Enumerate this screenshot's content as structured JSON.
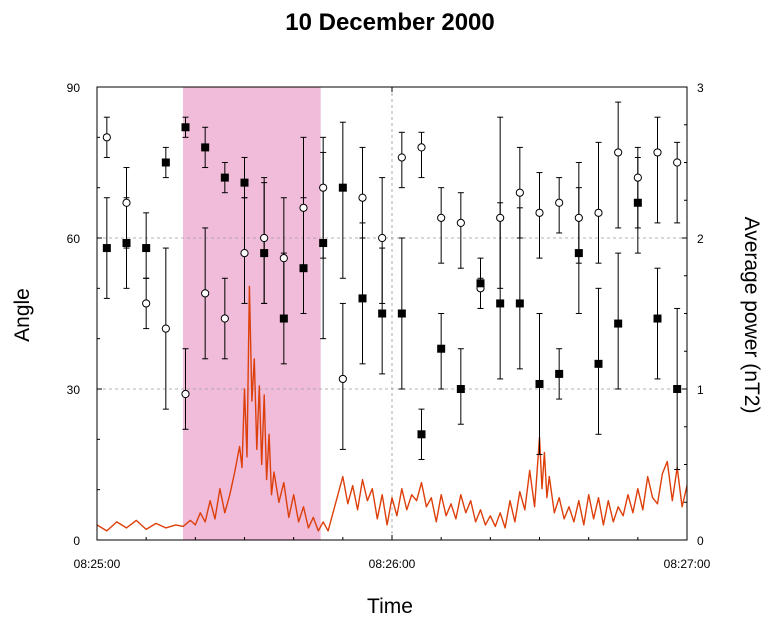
{
  "chart_data": {
    "type": "scatter",
    "title": "10 December 2000",
    "xlabel": "Time",
    "ylabel_left": "Angle",
    "ylabel_right": "Average power (nT2)",
    "x_ticks": [
      "08:25:00",
      "08:26:00",
      "08:27:00"
    ],
    "x_range_seconds": [
      0,
      120
    ],
    "y_left_ticks": [
      "0",
      "30",
      "60",
      "90"
    ],
    "y_left_range": [
      0,
      90
    ],
    "y_right_ticks": [
      "0",
      "1",
      "2",
      "3"
    ],
    "y_right_range": [
      0,
      3
    ],
    "grid": "dashed at 08:26:00, 30 and 60",
    "shaded_interval_seconds": [
      17.5,
      45.5
    ],
    "shaded_color": "#f0bcd9",
    "series": [
      {
        "marker": "open-circle",
        "x_seconds": [
          2,
          6,
          10,
          14,
          18,
          22,
          26,
          30,
          34,
          38,
          42,
          46,
          50,
          54,
          58,
          62,
          66,
          70,
          74,
          78,
          82,
          86,
          90,
          94,
          98,
          102,
          106,
          110,
          114,
          118
        ],
        "values": [
          80,
          67,
          47,
          42,
          29,
          49,
          44,
          57,
          60,
          56,
          66,
          70,
          32,
          68,
          60,
          76,
          78,
          64,
          63,
          50,
          64,
          69,
          65,
          67,
          64,
          65,
          77,
          72,
          77,
          75
        ],
        "err_low": [
          76,
          58,
          42,
          26,
          22,
          36,
          36,
          47,
          47,
          44,
          54,
          56,
          18,
          60,
          47,
          70,
          72,
          55,
          54,
          46,
          50,
          60,
          56,
          61,
          55,
          55,
          62,
          62,
          63,
          63
        ],
        "err_high": [
          84,
          74,
          52,
          58,
          38,
          62,
          52,
          68,
          72,
          68,
          80,
          80,
          47,
          78,
          72,
          81,
          81,
          70,
          69,
          52,
          84,
          78,
          73,
          72,
          75,
          79,
          87,
          76,
          84,
          79
        ]
      },
      {
        "marker": "filled-square",
        "x_seconds": [
          2,
          6,
          10,
          14,
          18,
          22,
          26,
          30,
          34,
          38,
          42,
          46,
          50,
          54,
          58,
          62,
          66,
          70,
          74,
          78,
          82,
          86,
          90,
          94,
          98,
          102,
          106,
          110,
          114,
          118
        ],
        "values": [
          58,
          59,
          58,
          75,
          82,
          78,
          72,
          71,
          57,
          44,
          54,
          59,
          70,
          48,
          45,
          45,
          21,
          38,
          30,
          51,
          47,
          47,
          31,
          33,
          57,
          35,
          43,
          67,
          44,
          30
        ],
        "err_low": [
          48,
          50,
          52,
          72,
          80,
          74,
          69,
          68,
          47,
          35,
          45,
          40,
          52,
          35,
          33,
          30,
          16,
          30,
          23,
          46,
          32,
          34,
          17,
          28,
          45,
          21,
          30,
          57,
          32,
          14
        ],
        "err_high": [
          68,
          68,
          65,
          78,
          84,
          82,
          75,
          76,
          71,
          57,
          68,
          77,
          83,
          63,
          58,
          60,
          26,
          45,
          38,
          56,
          67,
          66,
          45,
          38,
          70,
          50,
          57,
          78,
          54,
          46
        ]
      },
      {
        "marker": "line",
        "axis": "right",
        "color": "#dd3f0b",
        "x_seconds": [
          0,
          2,
          4,
          6,
          8,
          10,
          12,
          14,
          16,
          17.5,
          19,
          20,
          21,
          22,
          23,
          24,
          25,
          26,
          27,
          28,
          29,
          29.5,
          30,
          30.5,
          31,
          31.5,
          32,
          32.5,
          33,
          33.5,
          34,
          34.5,
          35,
          35.5,
          36,
          37,
          38,
          39,
          40,
          41,
          42,
          43,
          44,
          45,
          46,
          47,
          48,
          49,
          50,
          51,
          52,
          53,
          54,
          55,
          56,
          57,
          58,
          59,
          60,
          61,
          62,
          63,
          64,
          65,
          66,
          67,
          68,
          69,
          70,
          71,
          72,
          73,
          74,
          75,
          76,
          77,
          78,
          79,
          80,
          81,
          82,
          83,
          84,
          85,
          86,
          87,
          88,
          89,
          90,
          90.5,
          91,
          91.5,
          92,
          93,
          94,
          95,
          96,
          97,
          98,
          99,
          100,
          101,
          102,
          103,
          104,
          105,
          106,
          107,
          108,
          109,
          110,
          111,
          112,
          113,
          114,
          115,
          116,
          117,
          118,
          119,
          120
        ],
        "values": [
          0.1,
          0.06,
          0.12,
          0.08,
          0.13,
          0.07,
          0.11,
          0.08,
          0.1,
          0.09,
          0.13,
          0.1,
          0.18,
          0.12,
          0.26,
          0.14,
          0.34,
          0.18,
          0.3,
          0.45,
          0.62,
          0.48,
          1.0,
          0.55,
          1.68,
          0.92,
          1.2,
          0.6,
          1.02,
          0.5,
          0.96,
          0.4,
          0.7,
          0.3,
          0.45,
          0.25,
          0.38,
          0.15,
          0.3,
          0.12,
          0.22,
          0.08,
          0.15,
          0.06,
          0.12,
          0.06,
          0.18,
          0.3,
          0.42,
          0.24,
          0.36,
          0.2,
          0.4,
          0.26,
          0.34,
          0.14,
          0.3,
          0.1,
          0.28,
          0.16,
          0.34,
          0.2,
          0.3,
          0.26,
          0.38,
          0.22,
          0.28,
          0.12,
          0.3,
          0.16,
          0.24,
          0.14,
          0.3,
          0.18,
          0.26,
          0.12,
          0.2,
          0.1,
          0.16,
          0.09,
          0.18,
          0.08,
          0.26,
          0.12,
          0.32,
          0.2,
          0.46,
          0.22,
          0.68,
          0.34,
          0.58,
          0.28,
          0.42,
          0.18,
          0.28,
          0.14,
          0.22,
          0.12,
          0.26,
          0.1,
          0.3,
          0.14,
          0.28,
          0.1,
          0.26,
          0.12,
          0.22,
          0.16,
          0.3,
          0.18,
          0.34,
          0.2,
          0.42,
          0.28,
          0.24,
          0.44,
          0.52,
          0.26,
          0.48,
          0.22,
          0.36
        ]
      }
    ]
  }
}
